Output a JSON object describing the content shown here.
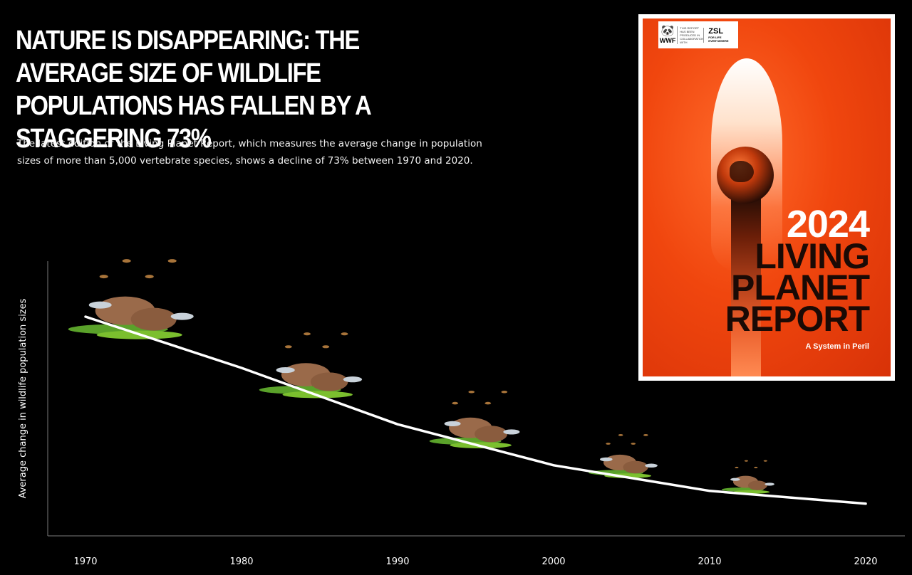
{
  "headline": "NATURE IS DISAPPEARING: THE AVERAGE SIZE OF WILDLIFE POPULATIONS HAS FALLEN BY A STAGGERING 73%",
  "intro": "The latest edition of the Living Planet Report, which measures the average change in population sizes of more than 5,000 vertebrate species, shows a decline of 73% between 1970 and 2020.",
  "report_cover": {
    "logo_wwf": "WWF",
    "logo_collab_text": "THIS REPORT HAS BEEN PRODUCED IN COLLABORATION WITH",
    "logo_zsl": "ZSL",
    "logo_zsl_tagline": "FOR LIFE EVERYWHERE",
    "year": "2024",
    "title_lines": [
      "LIVING",
      "PLANET",
      "REPORT"
    ],
    "subtitle": "A System in Peril"
  },
  "colors": {
    "background": "#000000",
    "line": "#ffffff",
    "cover_orange": "#f0460e"
  },
  "chart_data": {
    "type": "line",
    "title": "",
    "ylabel": "Average change in wildlife population sizes",
    "xlabel": "",
    "x_ticks": [
      1970,
      1980,
      1990,
      2000,
      2010,
      2020
    ],
    "xlim": [
      1970,
      2020
    ],
    "ylim": [
      0,
      1.2
    ],
    "y_ticks_shown": false,
    "grid": false,
    "series": [
      {
        "x": [
          1970,
          1980,
          1990,
          2000,
          2010,
          2020
        ],
        "y": [
          1.0,
          0.8,
          0.58,
          0.42,
          0.32,
          0.27
        ]
      }
    ],
    "illustrations": [
      "animal-group-1970",
      "animal-group-1982",
      "animal-group-1993",
      "animal-group-2004",
      "animal-group-2013"
    ]
  }
}
